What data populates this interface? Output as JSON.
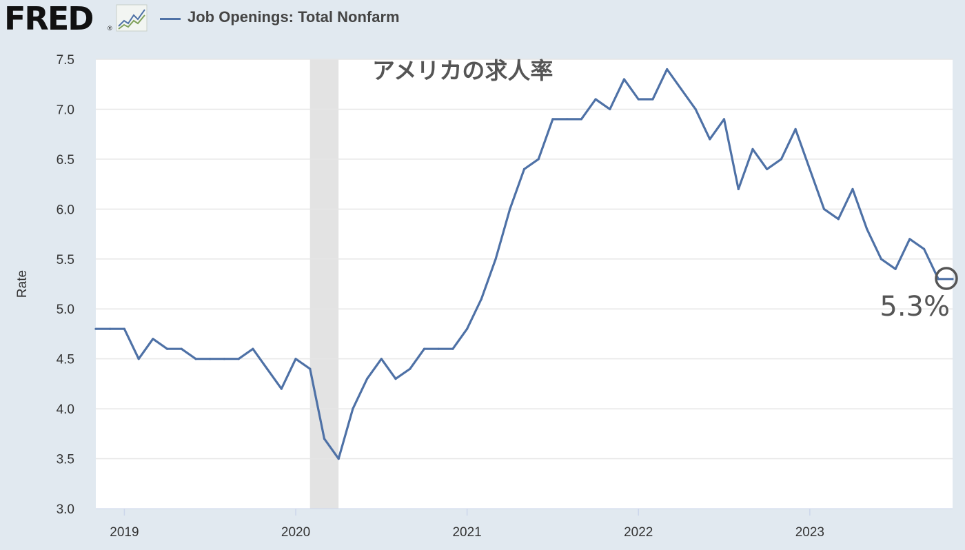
{
  "header": {
    "logo_text": "FRED",
    "logo_mark": "®",
    "logo_icon": "line-chart-icon",
    "series_name": "Job Openings: Total Nonfarm"
  },
  "colors": {
    "line": "#4e71a6",
    "recession": "#e3e3e3",
    "background": "#e1e9f0",
    "grid": "#e6e6e6",
    "annotation": "#555555"
  },
  "chart_data": {
    "type": "line",
    "ylabel": "Rate",
    "ylim": [
      3.0,
      7.5
    ],
    "yticks": [
      "3.0",
      "3.5",
      "4.0",
      "4.5",
      "5.0",
      "5.5",
      "6.0",
      "6.5",
      "7.0",
      "7.5"
    ],
    "xticks": [
      "2019",
      "2020",
      "2021",
      "2022",
      "2023"
    ],
    "x_range": [
      "2018-11",
      "2023-11"
    ],
    "grid": true,
    "recession_shading": [
      "2020-02",
      "2020-04"
    ],
    "series": [
      {
        "start": "2018-11",
        "values": [
          4.8,
          4.8,
          4.8,
          4.5,
          4.7,
          4.6,
          4.6,
          4.5,
          4.5,
          4.5,
          4.5,
          4.6,
          4.4,
          4.2,
          4.5,
          4.4,
          3.7,
          3.5,
          4.0,
          4.3,
          4.5,
          4.3,
          4.4,
          4.6,
          4.6,
          4.6,
          4.8,
          5.1,
          5.5,
          6.0,
          6.4,
          6.5,
          6.9,
          6.9,
          6.9,
          7.1,
          7.0,
          7.3,
          7.1,
          7.1,
          7.4,
          7.2,
          7.0,
          6.7,
          6.9,
          6.2,
          6.6,
          6.4,
          6.5,
          6.8,
          6.4,
          6.0,
          5.9,
          6.2,
          5.8,
          5.5,
          5.4,
          5.7,
          5.6,
          5.3,
          5.3
        ]
      }
    ],
    "annotations": {
      "title_jp": "アメリカの求人率",
      "last_value": "5.3%"
    }
  }
}
